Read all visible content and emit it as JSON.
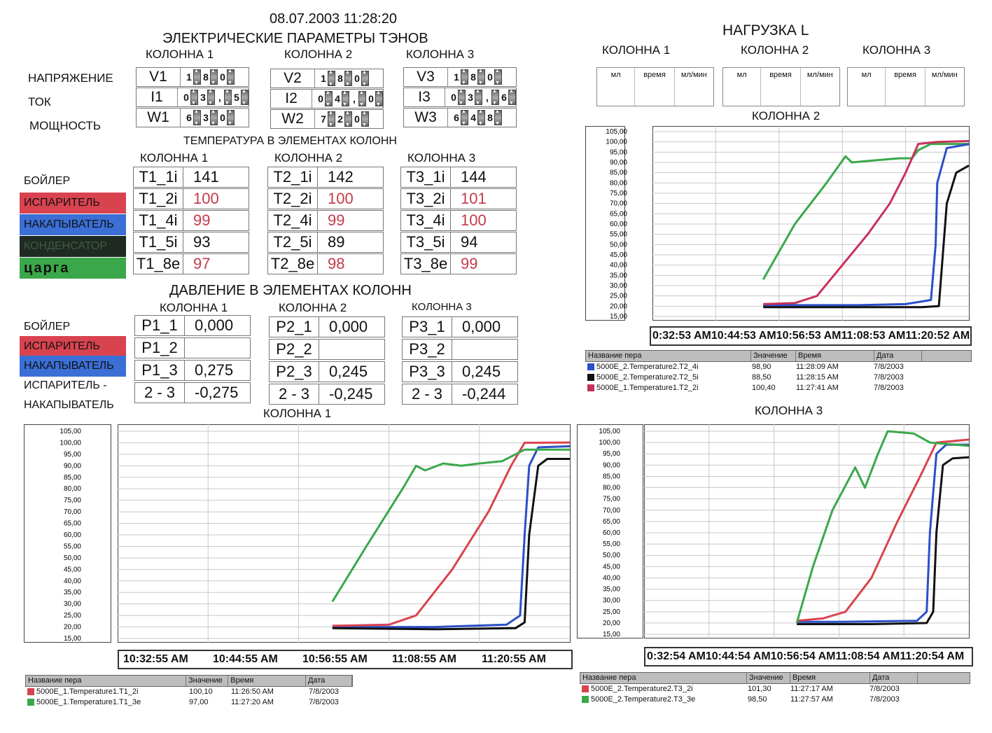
{
  "datetime": "08.07.2003 11:28:20",
  "elec_title": "ЭЛЕКТРИЧЕСКИЕ ПАРАМЕТРЫ ТЭНОВ",
  "col_labels": [
    "КОЛОННА 1",
    "КОЛОННА 2",
    "КОЛОННА 3"
  ],
  "elec_row_labels": [
    "НАПРЯЖЕНИЕ",
    "ТОК",
    "МОЩНОСТЬ"
  ],
  "elec": [
    [
      {
        "name": "V1",
        "digits": [
          "1",
          "8",
          "0"
        ]
      },
      {
        "name": "I1",
        "digits": [
          "0",
          "3",
          ",",
          "5"
        ]
      },
      {
        "name": "W1",
        "digits": [
          "6",
          "3",
          "0"
        ]
      }
    ],
    [
      {
        "name": "V2",
        "digits": [
          "1",
          "8",
          "0"
        ]
      },
      {
        "name": "I2",
        "digits": [
          "0",
          "4",
          ",",
          "0"
        ]
      },
      {
        "name": "W2",
        "digits": [
          "7",
          "2",
          "0"
        ]
      }
    ],
    [
      {
        "name": "V3",
        "digits": [
          "1",
          "8",
          "0"
        ]
      },
      {
        "name": "I3",
        "digits": [
          "0",
          "3",
          ",",
          "6"
        ]
      },
      {
        "name": "W3",
        "digits": [
          "6",
          "4",
          "8"
        ]
      }
    ]
  ],
  "temp_title": "ТЕМПЕРАТУРА В ЭЛЕМЕНТАХ КОЛОНН",
  "temp_side": [
    {
      "label": "БОЙЛЕР",
      "color": ""
    },
    {
      "label": "ИСПАРИТЕЛЬ",
      "color": "#d9434f"
    },
    {
      "label": "НАКАПЫВАТЕЛЬ",
      "color": "#3b6fd6"
    },
    {
      "label": "КОНДЕНСАТОР",
      "color": "#1f2a22"
    },
    {
      "label": "царга",
      "color": "#3aa84a"
    }
  ],
  "temps": [
    [
      {
        "n": "T1_1i",
        "v": "141",
        "red": false
      },
      {
        "n": "T1_2i",
        "v": "100",
        "red": true
      },
      {
        "n": "T1_4i",
        "v": "99",
        "red": true
      },
      {
        "n": "T1_5i",
        "v": "93",
        "red": false
      },
      {
        "n": "T1_8e",
        "v": "97",
        "red": true
      }
    ],
    [
      {
        "n": "T2_1i",
        "v": "142",
        "red": false
      },
      {
        "n": "T2_2i",
        "v": "100",
        "red": true
      },
      {
        "n": "T2_4i",
        "v": "99",
        "red": true
      },
      {
        "n": "T2_5i",
        "v": "89",
        "red": false
      },
      {
        "n": "T2_8e",
        "v": "98",
        "red": true
      }
    ],
    [
      {
        "n": "T3_1i",
        "v": "144",
        "red": false
      },
      {
        "n": "T3_2i",
        "v": "101",
        "red": true
      },
      {
        "n": "T3_4i",
        "v": "100",
        "red": true
      },
      {
        "n": "T3_5i",
        "v": "94",
        "red": false
      },
      {
        "n": "T3_8e",
        "v": "99",
        "red": true
      }
    ]
  ],
  "press_title": "ДАВЛЕНИЕ В ЭЛЕМЕНТАХ КОЛОНН",
  "press_side": [
    {
      "label": "БОЙЛЕР",
      "color": ""
    },
    {
      "label": "ИСПАРИТЕЛЬ",
      "color": "#d9434f"
    },
    {
      "label": "НАКАПЫВАТЕЛЬ",
      "color": "#3b6fd6"
    },
    {
      "label": "ИСПАРИТЕЛЬ -",
      "color": ""
    },
    {
      "label": "НАКАПЫВАТЕЛЬ",
      "color": ""
    }
  ],
  "press": [
    [
      {
        "n": "P1_1",
        "v": "0,000"
      },
      {
        "n": "P1_2",
        "v": ""
      },
      {
        "n": "P1_3",
        "v": "0,275"
      },
      {
        "n": "2 - 3",
        "v": "-0,275"
      }
    ],
    [
      {
        "n": "P2_1",
        "v": "0,000"
      },
      {
        "n": "P2_2",
        "v": ""
      },
      {
        "n": "P2_3",
        "v": "0,245"
      },
      {
        "n": "2 - 3",
        "v": "-0,245"
      }
    ],
    [
      {
        "n": "P3_1",
        "v": "0,000"
      },
      {
        "n": "P3_2",
        "v": ""
      },
      {
        "n": "P3_3",
        "v": "0,245"
      },
      {
        "n": "2 - 3",
        "v": "-0,244"
      }
    ]
  ],
  "load_title": "НАГРУЗКА  L",
  "load_headers": [
    "мл",
    "время",
    "мл/мин"
  ],
  "legend_headers": [
    "Название пера",
    "Значение",
    "Время",
    "Дата"
  ],
  "chart_data": [
    {
      "type": "line",
      "title": "КОЛОННА 2",
      "ylim": [
        15,
        105
      ],
      "yticks": [
        "105,00",
        "100,00",
        "95,00",
        "90,00",
        "85,00",
        "80,00",
        "75,00",
        "70,00",
        "65,00",
        "60,00",
        "55,00",
        "50,00",
        "45,00",
        "40,00",
        "35,00",
        "30,00",
        "25,00",
        "20,00",
        "15,00"
      ],
      "xticks": "0:32:53 AM10:44:53 AM10:56:53 AM11:08:53 AM11:20:52 AM",
      "series": [
        {
          "name": "5000E_2.Temperature2.T2_4i",
          "color": "#2b4fc8",
          "value": "98,90",
          "time": "11:28:09 AM",
          "date": "7/8/2003",
          "points": [
            [
              0.35,
              20.5
            ],
            [
              0.5,
              20.5
            ],
            [
              0.65,
              20.5
            ],
            [
              0.8,
              21
            ],
            [
              0.88,
              23
            ],
            [
              0.895,
              50
            ],
            [
              0.9,
              80
            ],
            [
              0.93,
              97
            ],
            [
              1.0,
              98.9
            ]
          ]
        },
        {
          "name": "5000E_2.Temperature2.T2_5i",
          "color": "#111111",
          "value": "88,50",
          "time": "11:28:15 AM",
          "date": "7/8/2003",
          "points": [
            [
              0.35,
              19.5
            ],
            [
              0.6,
              19.5
            ],
            [
              0.85,
              19.5
            ],
            [
              0.905,
              20
            ],
            [
              0.915,
              40
            ],
            [
              0.93,
              70
            ],
            [
              0.96,
              85
            ],
            [
              1.0,
              88.5
            ]
          ]
        },
        {
          "name": "5000E_1.Temperature1.T2_2i",
          "color": "#c8325a",
          "value": "100,40",
          "time": "11:27:41 AM",
          "date": "7/8/2003",
          "points": [
            [
              0.35,
              21
            ],
            [
              0.45,
              21.5
            ],
            [
              0.52,
              25
            ],
            [
              0.6,
              40
            ],
            [
              0.68,
              55
            ],
            [
              0.75,
              70
            ],
            [
              0.8,
              85
            ],
            [
              0.84,
              99
            ],
            [
              0.9,
              100
            ],
            [
              1.0,
              100.4
            ]
          ]
        }
      ],
      "green": [
        [
          0.35,
          33
        ],
        [
          0.45,
          60
        ],
        [
          0.55,
          80
        ],
        [
          0.61,
          93
        ],
        [
          0.63,
          90
        ],
        [
          0.7,
          91
        ],
        [
          0.78,
          92
        ],
        [
          0.82,
          92
        ],
        [
          0.84,
          96
        ],
        [
          0.88,
          99
        ],
        [
          1.0,
          99
        ]
      ]
    },
    {
      "type": "line",
      "title": "КОЛОННА 1",
      "ylim": [
        15,
        105
      ],
      "yticks": [
        "105,00",
        "100,00",
        "95,00",
        "90,00",
        "85,00",
        "80,00",
        "75,00",
        "70,00",
        "65,00",
        "60,00",
        "55,00",
        "50,00",
        "45,00",
        "40,00",
        "35,00",
        "30,00",
        "25,00",
        "20,00",
        "15,00"
      ],
      "xticks": [
        "10:32:55 AM",
        "10:44:55 AM",
        "10:56:55 AM",
        "11:08:55 AM",
        "11:20:55 AM"
      ],
      "series": [
        {
          "name": "5000E_1.Temperature1.T1_2i",
          "color": "#d9434f",
          "value": "100,10",
          "time": "11:26:50 AM",
          "date": "7/8/2003",
          "points": [
            [
              0.475,
              20.5
            ],
            [
              0.6,
              21
            ],
            [
              0.66,
              25
            ],
            [
              0.74,
              45
            ],
            [
              0.82,
              70
            ],
            [
              0.87,
              90
            ],
            [
              0.9,
              100
            ],
            [
              1.0,
              100.1
            ]
          ]
        },
        {
          "name": "5000E_1.Temperature1.T1_3e",
          "color": "#3aa84a",
          "value": "97,00",
          "time": "11:27:20 AM",
          "date": "7/8/2003",
          "points": [
            [
              0.475,
              31
            ],
            [
              0.55,
              55
            ],
            [
              0.63,
              80
            ],
            [
              0.66,
              90
            ],
            [
              0.68,
              88
            ],
            [
              0.72,
              91
            ],
            [
              0.76,
              90
            ],
            [
              0.8,
              91
            ],
            [
              0.85,
              92
            ],
            [
              0.9,
              97
            ],
            [
              1.0,
              97
            ]
          ]
        }
      ],
      "blue": [
        [
          0.475,
          20
        ],
        [
          0.7,
          20
        ],
        [
          0.86,
          21
        ],
        [
          0.89,
          25
        ],
        [
          0.9,
          60
        ],
        [
          0.91,
          90
        ],
        [
          0.93,
          98
        ],
        [
          1.0,
          98.5
        ]
      ],
      "black": [
        [
          0.475,
          19.5
        ],
        [
          0.7,
          19
        ],
        [
          0.88,
          19.5
        ],
        [
          0.9,
          22
        ],
        [
          0.91,
          60
        ],
        [
          0.93,
          90
        ],
        [
          0.95,
          93
        ],
        [
          1.0,
          93
        ]
      ]
    },
    {
      "type": "line",
      "title": "КОЛОННА 3",
      "ylim": [
        15,
        105
      ],
      "yticks": [
        "105,00",
        "100,00",
        "95,00",
        "90,00",
        "85,00",
        "80,00",
        "75,00",
        "70,00",
        "65,00",
        "60,00",
        "55,00",
        "50,00",
        "45,00",
        "40,00",
        "35,00",
        "30,00",
        "25,00",
        "20,00",
        "15,00"
      ],
      "xticks": "0:32:54 AM10:44:54 AM10:56:54 AM11:08:54 AM11:20:54 AM",
      "series": [
        {
          "name": "5000E_2.Temperature2.T3_2i",
          "color": "#d9434f",
          "value": "101,30",
          "time": "11:27:17 AM",
          "date": "7/8/2003",
          "points": [
            [
              0.47,
              21
            ],
            [
              0.55,
              22
            ],
            [
              0.62,
              25
            ],
            [
              0.7,
              40
            ],
            [
              0.78,
              65
            ],
            [
              0.85,
              85
            ],
            [
              0.9,
              100
            ],
            [
              1.0,
              101.3
            ]
          ]
        },
        {
          "name": "5000E_2.Temperature2.T3_3e",
          "color": "#3aa84a",
          "value": "98,50",
          "time": "11:27:57 AM",
          "date": "7/8/2003",
          "points": [
            [
              0.47,
              20
            ],
            [
              0.52,
              45
            ],
            [
              0.58,
              70
            ],
            [
              0.65,
              89
            ],
            [
              0.68,
              80
            ],
            [
              0.72,
              95
            ],
            [
              0.75,
              105
            ],
            [
              0.83,
              104
            ],
            [
              0.88,
              100
            ],
            [
              1.0,
              98.5
            ]
          ]
        }
      ],
      "blue": [
        [
          0.47,
          20.5
        ],
        [
          0.6,
          20.5
        ],
        [
          0.84,
          21
        ],
        [
          0.87,
          25
        ],
        [
          0.88,
          60
        ],
        [
          0.9,
          95
        ],
        [
          0.93,
          99
        ],
        [
          1.0,
          99
        ]
      ],
      "black": [
        [
          0.47,
          19.5
        ],
        [
          0.7,
          19.5
        ],
        [
          0.87,
          20
        ],
        [
          0.89,
          25
        ],
        [
          0.9,
          60
        ],
        [
          0.92,
          90
        ],
        [
          0.95,
          93
        ],
        [
          1.0,
          93.5
        ]
      ]
    }
  ]
}
